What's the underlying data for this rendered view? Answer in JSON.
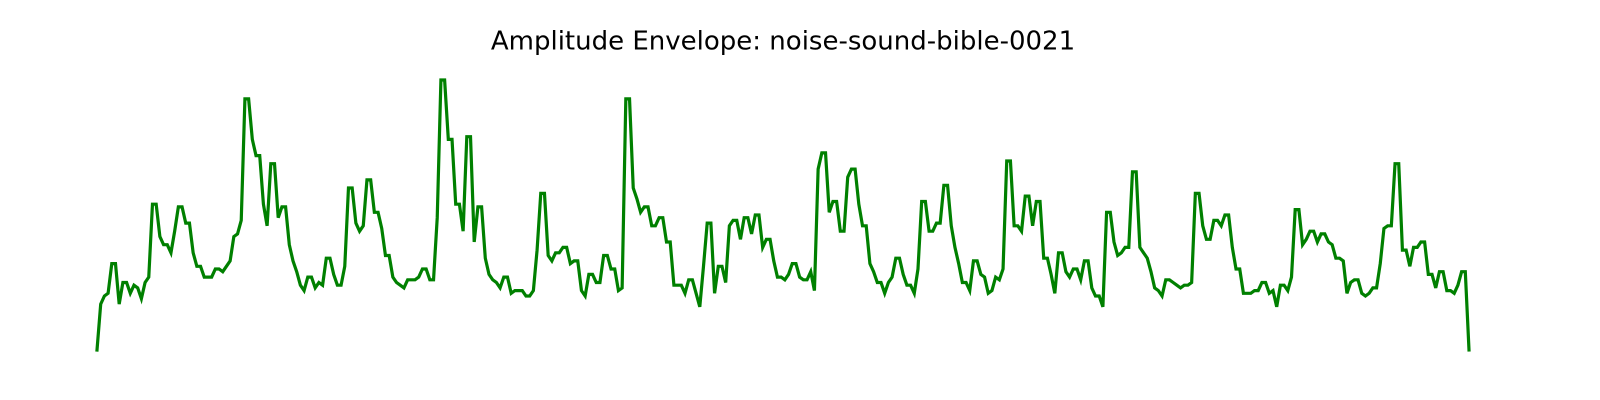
{
  "chart_data": {
    "type": "line",
    "title": "Amplitude Envelope: noise-sound-bible-0021",
    "color": "#008000",
    "values": [
      0,
      0.17,
      0.2,
      0.21,
      0.32,
      0.32,
      0.17,
      0.25,
      0.25,
      0.21,
      0.24,
      0.23,
      0.19,
      0.25,
      0.27,
      0.54,
      0.54,
      0.42,
      0.39,
      0.39,
      0.36,
      0.44,
      0.53,
      0.53,
      0.47,
      0.47,
      0.36,
      0.31,
      0.31,
      0.27,
      0.27,
      0.27,
      0.3,
      0.3,
      0.29,
      0.31,
      0.33,
      0.42,
      0.43,
      0.48,
      0.93,
      0.93,
      0.78,
      0.72,
      0.72,
      0.54,
      0.46,
      0.69,
      0.69,
      0.49,
      0.53,
      0.53,
      0.39,
      0.33,
      0.29,
      0.24,
      0.22,
      0.27,
      0.27,
      0.23,
      0.25,
      0.24,
      0.34,
      0.34,
      0.28,
      0.24,
      0.24,
      0.31,
      0.6,
      0.6,
      0.47,
      0.44,
      0.46,
      0.63,
      0.63,
      0.51,
      0.51,
      0.45,
      0.35,
      0.35,
      0.27,
      0.25,
      0.24,
      0.23,
      0.26,
      0.26,
      0.26,
      0.27,
      0.3,
      0.3,
      0.26,
      0.26,
      0.49,
      1.0,
      1.0,
      0.78,
      0.78,
      0.54,
      0.54,
      0.44,
      0.79,
      0.79,
      0.4,
      0.53,
      0.53,
      0.34,
      0.28,
      0.26,
      0.25,
      0.23,
      0.27,
      0.27,
      0.21,
      0.22,
      0.22,
      0.22,
      0.2,
      0.2,
      0.22,
      0.37,
      0.58,
      0.58,
      0.35,
      0.33,
      0.36,
      0.36,
      0.38,
      0.38,
      0.32,
      0.33,
      0.33,
      0.22,
      0.2,
      0.28,
      0.28,
      0.25,
      0.25,
      0.35,
      0.35,
      0.3,
      0.3,
      0.22,
      0.23,
      0.93,
      0.93,
      0.6,
      0.56,
      0.51,
      0.53,
      0.53,
      0.46,
      0.46,
      0.49,
      0.49,
      0.4,
      0.4,
      0.24,
      0.24,
      0.24,
      0.21,
      0.26,
      0.26,
      0.21,
      0.16,
      0.31,
      0.47,
      0.47,
      0.21,
      0.31,
      0.31,
      0.25,
      0.46,
      0.48,
      0.48,
      0.41,
      0.49,
      0.49,
      0.43,
      0.5,
      0.5,
      0.38,
      0.41,
      0.41,
      0.33,
      0.27,
      0.27,
      0.26,
      0.28,
      0.32,
      0.32,
      0.27,
      0.26,
      0.26,
      0.29,
      0.22,
      0.67,
      0.73,
      0.73,
      0.51,
      0.55,
      0.55,
      0.44,
      0.44,
      0.64,
      0.67,
      0.67,
      0.54,
      0.46,
      0.46,
      0.32,
      0.29,
      0.25,
      0.25,
      0.21,
      0.25,
      0.27,
      0.34,
      0.34,
      0.28,
      0.24,
      0.24,
      0.21,
      0.3,
      0.55,
      0.55,
      0.44,
      0.44,
      0.47,
      0.47,
      0.61,
      0.61,
      0.46,
      0.38,
      0.32,
      0.25,
      0.25,
      0.22,
      0.33,
      0.33,
      0.28,
      0.27,
      0.21,
      0.22,
      0.27,
      0.26,
      0.3,
      0.7,
      0.7,
      0.46,
      0.46,
      0.44,
      0.57,
      0.57,
      0.46,
      0.55,
      0.55,
      0.34,
      0.34,
      0.28,
      0.21,
      0.36,
      0.36,
      0.29,
      0.27,
      0.3,
      0.3,
      0.26,
      0.33,
      0.33,
      0.23,
      0.2,
      0.2,
      0.16,
      0.51,
      0.51,
      0.4,
      0.35,
      0.36,
      0.38,
      0.38,
      0.66,
      0.66,
      0.38,
      0.36,
      0.34,
      0.29,
      0.23,
      0.22,
      0.2,
      0.26,
      0.26,
      0.25,
      0.24,
      0.23,
      0.24,
      0.24,
      0.25,
      0.58,
      0.58,
      0.46,
      0.41,
      0.41,
      0.48,
      0.48,
      0.46,
      0.5,
      0.5,
      0.38,
      0.3,
      0.3,
      0.21,
      0.21,
      0.21,
      0.22,
      0.22,
      0.25,
      0.25,
      0.21,
      0.22,
      0.16,
      0.24,
      0.24,
      0.22,
      0.27,
      0.52,
      0.52,
      0.39,
      0.41,
      0.44,
      0.44,
      0.4,
      0.43,
      0.43,
      0.4,
      0.39,
      0.34,
      0.34,
      0.33,
      0.21,
      0.25,
      0.26,
      0.26,
      0.21,
      0.2,
      0.21,
      0.23,
      0.23,
      0.32,
      0.45,
      0.46,
      0.46,
      0.69,
      0.69,
      0.37,
      0.37,
      0.31,
      0.38,
      0.38,
      0.4,
      0.4,
      0.28,
      0.28,
      0.23,
      0.29,
      0.29,
      0.22,
      0.22,
      0.21,
      0.24,
      0.29,
      0.29,
      0
    ]
  }
}
